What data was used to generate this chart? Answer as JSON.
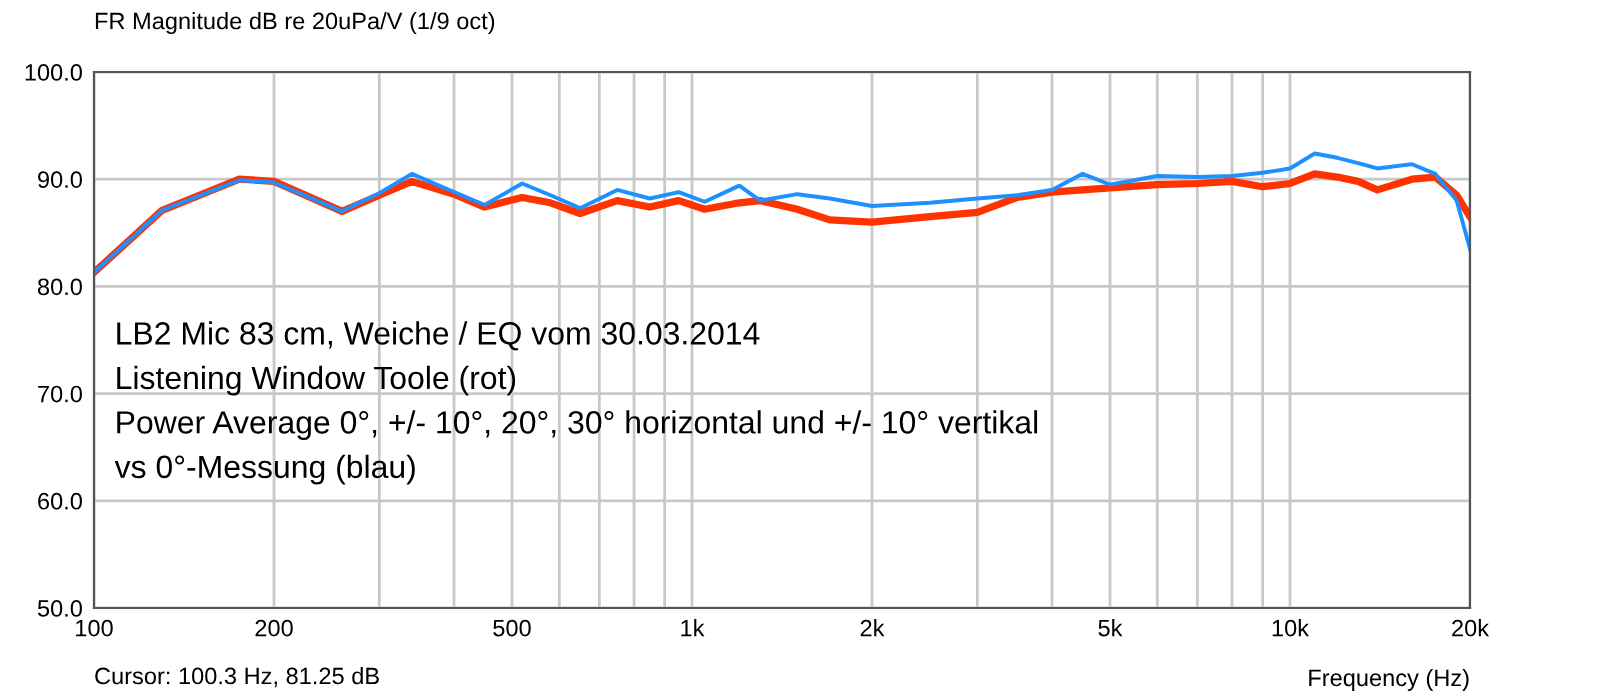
{
  "chart_data": {
    "type": "line",
    "title": "FR Magnitude dB re 20uPa/V (1/9 oct)",
    "xlabel": "Frequency (Hz)",
    "annotations": [
      "LB2 Mic 83 cm, Weiche / EQ vom 30.03.2014",
      "Listening Window Toole (rot)",
      "Power Average 0°, +/- 10°, 20°, 30° horizontal und +/- 10° vertikal",
      "vs 0°-Messung (blau)",
      "Cursor: 100.3 Hz, 81.25 dB"
    ],
    "x": [
      100,
      130,
      175,
      200,
      260,
      300,
      340,
      400,
      450,
      520,
      580,
      650,
      750,
      850,
      950,
      1050,
      1200,
      1300,
      1500,
      1700,
      2000,
      2500,
      3000,
      3500,
      4000,
      4500,
      5000,
      6000,
      7000,
      8000,
      9000,
      10000,
      11000,
      12000,
      13000,
      14000,
      16000,
      17500,
      19000,
      20000
    ],
    "series": [
      {
        "color": "#ff3300",
        "values": [
          81.3,
          87.1,
          90.0,
          89.8,
          87.0,
          88.5,
          89.8,
          88.6,
          87.4,
          88.3,
          87.8,
          86.8,
          88.0,
          87.4,
          88.0,
          87.2,
          87.8,
          88.0,
          87.2,
          86.2,
          86.0,
          86.5,
          86.9,
          88.3,
          88.8,
          89.0,
          89.2,
          89.5,
          89.6,
          89.8,
          89.3,
          89.6,
          90.5,
          90.2,
          89.8,
          89.0,
          90.0,
          90.2,
          88.5,
          86.5
        ]
      },
      {
        "color": "#1e90ff",
        "values": [
          81.3,
          87.1,
          89.9,
          89.7,
          87.0,
          88.7,
          90.5,
          88.8,
          87.6,
          89.6,
          88.5,
          87.3,
          89.0,
          88.2,
          88.8,
          87.9,
          89.4,
          88.0,
          88.6,
          88.2,
          87.5,
          87.8,
          88.2,
          88.5,
          89.0,
          90.5,
          89.5,
          90.3,
          90.2,
          90.3,
          90.6,
          91.0,
          92.4,
          92.0,
          91.5,
          91.0,
          91.4,
          90.5,
          88.0,
          83.5
        ]
      }
    ],
    "xlim": [
      100,
      20000
    ],
    "ylim": [
      50,
      100
    ],
    "xticks": [
      {
        "value": 100,
        "label": "100"
      },
      {
        "value": 200,
        "label": "200"
      },
      {
        "value": 300,
        "label": null
      },
      {
        "value": 400,
        "label": null
      },
      {
        "value": 500,
        "label": "500"
      },
      {
        "value": 600,
        "label": null
      },
      {
        "value": 700,
        "label": null
      },
      {
        "value": 800,
        "label": null
      },
      {
        "value": 900,
        "label": null
      },
      {
        "value": 1000,
        "label": "1k"
      },
      {
        "value": 2000,
        "label": "2k"
      },
      {
        "value": 3000,
        "label": null
      },
      {
        "value": 4000,
        "label": null
      },
      {
        "value": 5000,
        "label": "5k"
      },
      {
        "value": 6000,
        "label": null
      },
      {
        "value": 7000,
        "label": null
      },
      {
        "value": 8000,
        "label": null
      },
      {
        "value": 9000,
        "label": null
      },
      {
        "value": 10000,
        "label": "10k"
      },
      {
        "value": 20000,
        "label": "20k"
      }
    ],
    "yticks": [
      {
        "value": 50,
        "label": "50.0"
      },
      {
        "value": 60,
        "label": "60.0"
      },
      {
        "value": 70,
        "label": "70.0"
      },
      {
        "value": 80,
        "label": "80.0"
      },
      {
        "value": 90,
        "label": "90.0"
      },
      {
        "value": 100,
        "label": "100.0"
      }
    ],
    "log": "x",
    "grid": true,
    "line_style": "solid",
    "marker": "none"
  }
}
